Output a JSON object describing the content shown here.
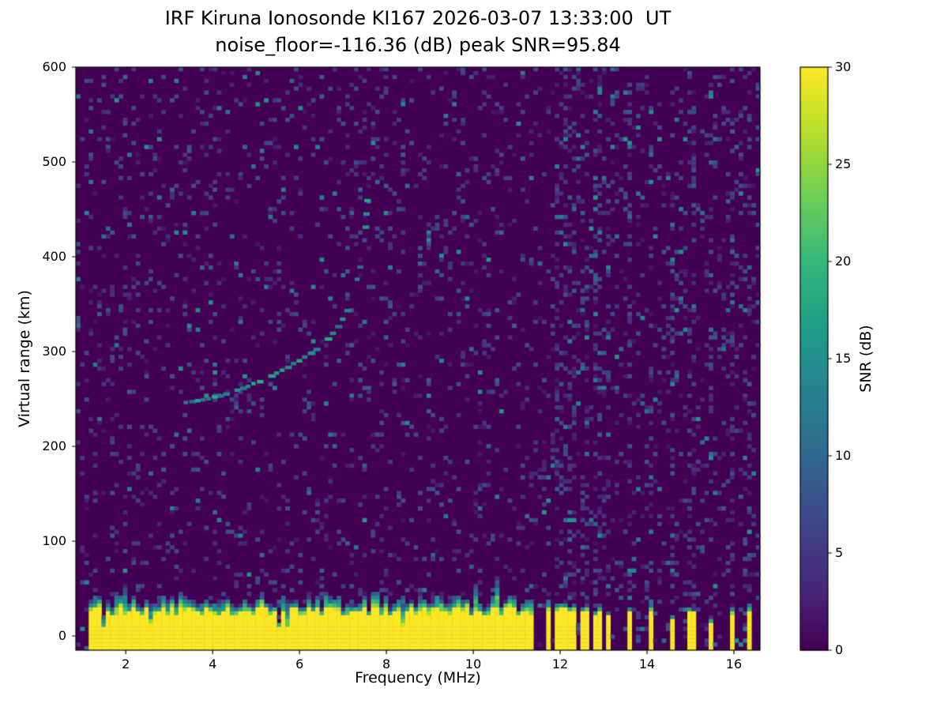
{
  "chart_data": {
    "type": "heatmap",
    "title": "IRF Kiruna Ionosonde KI167 2026-03-07 13:33:00  UT",
    "subtitle": "noise_floor=-116.36 (dB) peak SNR=95.84",
    "noise_floor_db": -116.36,
    "peak_snr_db": 95.84,
    "xlabel": "Frequency (MHz)",
    "ylabel": "Virtual range (km)",
    "xlim": [
      0.85,
      16.6
    ],
    "ylim": [
      -15,
      600
    ],
    "xticks": [
      2,
      4,
      6,
      8,
      10,
      12,
      14,
      16
    ],
    "yticks": [
      0,
      100,
      200,
      300,
      400,
      500,
      600
    ],
    "grid": false,
    "colormap": "viridis",
    "background_value_color": "#440154",
    "peak_color": "#fde725",
    "colorbar": {
      "label": "SNR (dB)",
      "min": 0,
      "max": 30,
      "ticks": [
        0,
        5,
        10,
        15,
        20,
        25,
        30
      ],
      "position": "right"
    },
    "ground_clutter": {
      "freq_start": 1.15,
      "freq_end": 11.83,
      "top_km_min": 20,
      "top_km_max": 32,
      "snr_db": 30
    },
    "rfi_stripes": [
      {
        "f": 11.93,
        "h": 27
      },
      {
        "f": 12.07,
        "h": 29
      },
      {
        "f": 12.21,
        "h": 25
      },
      {
        "f": 12.35,
        "h": 28
      },
      {
        "f": 12.49,
        "h": 24
      },
      {
        "f": 12.63,
        "h": 27
      },
      {
        "f": 12.77,
        "h": 22
      },
      {
        "f": 12.95,
        "h": 26
      },
      {
        "f": 13.1,
        "h": 20
      },
      {
        "f": 13.62,
        "h": 25
      },
      {
        "f": 14.1,
        "h": 27
      },
      {
        "f": 14.55,
        "h": 17
      },
      {
        "f": 15.02,
        "h": 24
      },
      {
        "f": 15.45,
        "h": 13
      },
      {
        "f": 15.95,
        "h": 23
      },
      {
        "f": 16.35,
        "h": 27
      }
    ],
    "echo_trace": [
      [
        3.2,
        245
      ],
      [
        3.33,
        246
      ],
      [
        3.46,
        247
      ],
      [
        3.59,
        248
      ],
      [
        3.72,
        249
      ],
      [
        3.85,
        250
      ],
      [
        3.98,
        252
      ],
      [
        4.11,
        253
      ],
      [
        4.24,
        255
      ],
      [
        4.37,
        257
      ],
      [
        4.5,
        259
      ],
      [
        4.63,
        261
      ],
      [
        4.76,
        263
      ],
      [
        4.89,
        266
      ],
      [
        5.02,
        268
      ],
      [
        5.15,
        271
      ],
      [
        5.28,
        274
      ],
      [
        5.41,
        277
      ],
      [
        5.54,
        280
      ],
      [
        5.67,
        283
      ],
      [
        5.8,
        287
      ],
      [
        5.93,
        290
      ],
      [
        6.06,
        294
      ],
      [
        6.19,
        298
      ],
      [
        6.32,
        302
      ],
      [
        6.45,
        307
      ],
      [
        6.58,
        313
      ],
      [
        6.7,
        319
      ],
      [
        6.82,
        326
      ],
      [
        6.93,
        334
      ],
      [
        7.03,
        343
      ],
      [
        7.12,
        353
      ],
      [
        7.2,
        364
      ],
      [
        7.27,
        376
      ],
      [
        7.33,
        389
      ],
      [
        7.38,
        403
      ],
      [
        7.42,
        417
      ],
      [
        7.45,
        431
      ],
      [
        7.47,
        445
      ],
      [
        7.49,
        459
      ]
    ],
    "echo_trace_snr_db_range": [
      10,
      19
    ],
    "noise_speckle": {
      "base_prob": 0.095,
      "high_freq_prob": 0.12,
      "stripe_prob": 0.26,
      "dim_db_range": [
        1.5,
        8
      ],
      "bright_db_range": [
        8,
        16
      ]
    }
  }
}
